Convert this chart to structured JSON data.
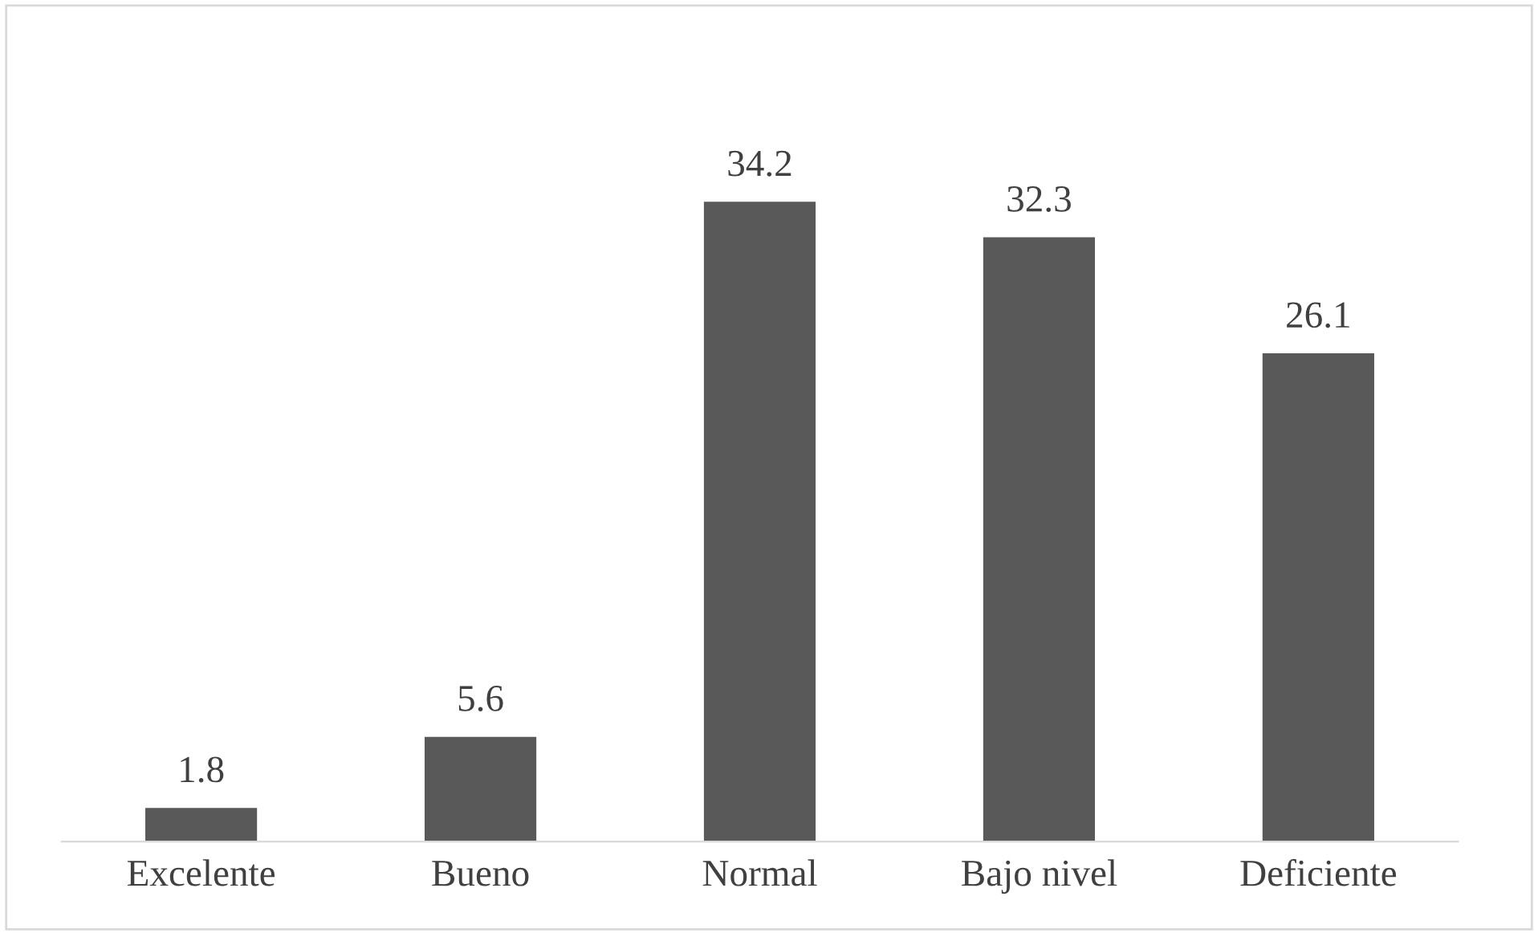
{
  "chart_data": {
    "type": "bar",
    "categories": [
      "Excelente",
      "Bueno",
      "Normal",
      "Bajo nivel",
      "Deficiente"
    ],
    "values": [
      1.8,
      5.6,
      34.2,
      32.3,
      26.1
    ],
    "color": "#595959",
    "data_labels": true,
    "grid": false
  }
}
